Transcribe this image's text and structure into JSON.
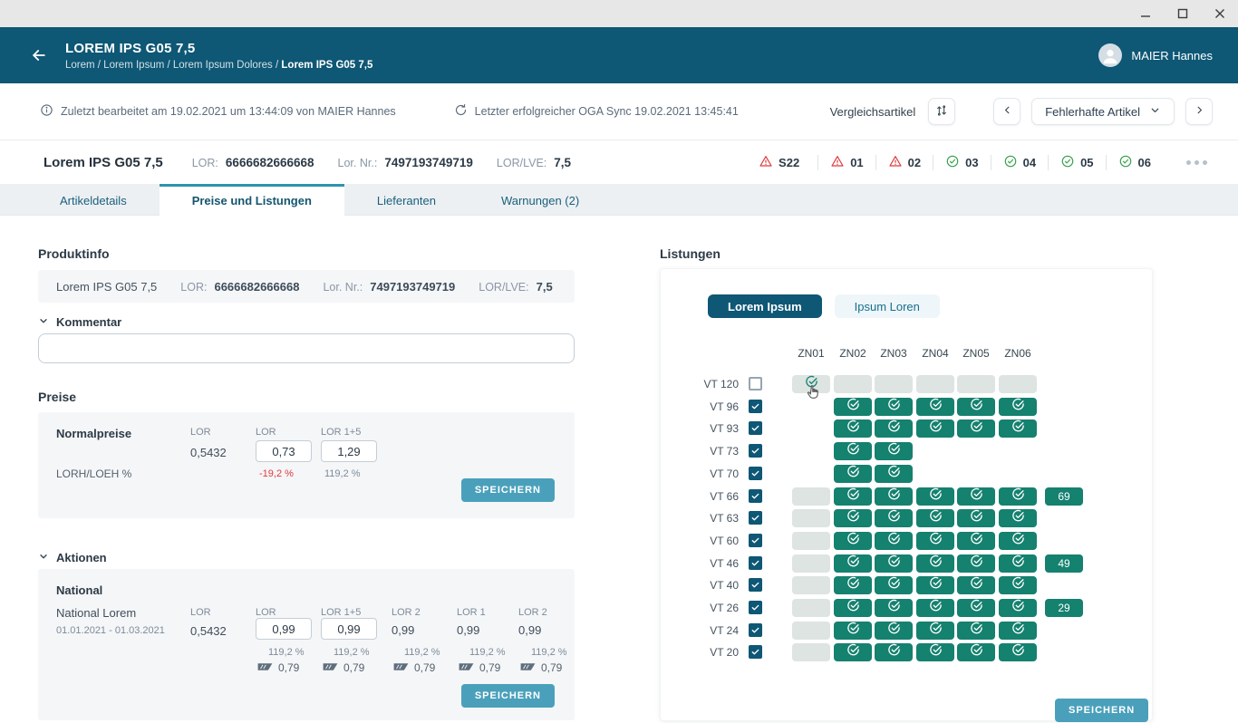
{
  "window": {
    "controls": [
      "minimize",
      "maximize",
      "close"
    ]
  },
  "header": {
    "title": "LOREM IPS G05 7,5",
    "breadcrumb_prefix": "Lorem / Lorem Ipsum / Lorem Ipsum Dolores / ",
    "breadcrumb_current": "Lorem IPS G05 7,5",
    "user": "MAIER Hannes"
  },
  "infobar": {
    "last_edited": "Zuletzt bearbeitet am 19.02.2021 um 13:44:09 von MAIER Hannes",
    "last_sync": "Letzter erfolgreicher OGA Sync 19.02.2021 13:45:41",
    "compare_label": "Vergleichsartikel",
    "dropdown_label": "Fehlerhafte Artikel"
  },
  "article": {
    "name": "Lorem IPS G05 7,5",
    "fields": [
      {
        "label": "LOR:",
        "value": "6666682666668"
      },
      {
        "label": "Lor. Nr.:",
        "value": "7497193749719"
      },
      {
        "label": "LOR/LVE:",
        "value": "7,5"
      }
    ],
    "badges": [
      {
        "label": "S22",
        "type": "warning"
      },
      {
        "label": "01",
        "type": "warning"
      },
      {
        "label": "02",
        "type": "warning"
      },
      {
        "label": "03",
        "type": "ok"
      },
      {
        "label": "04",
        "type": "ok"
      },
      {
        "label": "05",
        "type": "ok"
      },
      {
        "label": "06",
        "type": "ok"
      }
    ]
  },
  "tabs": [
    {
      "label": "Artikeldetails",
      "active": false
    },
    {
      "label": "Preise und Listungen",
      "active": true
    },
    {
      "label": "Lieferanten",
      "active": false
    },
    {
      "label": "Warnungen (2)",
      "active": false
    }
  ],
  "produktinfo": {
    "title": "Produktinfo",
    "name": "Lorem IPS G05 7,5",
    "fields": [
      {
        "label": "LOR:",
        "value": "6666682666668"
      },
      {
        "label": "Lor. Nr.:",
        "value": "7497193749719"
      },
      {
        "label": "LOR/LVE:",
        "value": "7,5"
      }
    ],
    "kommentar_label": "Kommentar",
    "kommentar_value": ""
  },
  "preise": {
    "title": "Preise",
    "row_label": "Normalpreise",
    "pct_row_label": "LORH/LOEH %",
    "columns": [
      {
        "header": "LOR",
        "value": "0,5432",
        "editable": false,
        "pct": ""
      },
      {
        "header": "LOR",
        "value": "0,73",
        "editable": true,
        "pct": "-19,2 %",
        "pct_negative": true
      },
      {
        "header": "LOR 1+5",
        "value": "1,29",
        "editable": true,
        "pct": "119,2 %",
        "pct_negative": false
      }
    ],
    "save_label": "SPEICHERN"
  },
  "aktionen": {
    "title": "Aktionen",
    "group": "National",
    "name": "National Lorem",
    "period": "01.01.2021 - 01.03.2021",
    "base": {
      "header": "LOR",
      "value": "0,5432"
    },
    "columns": [
      {
        "header": "LOR",
        "value": "0,99",
        "editable": true,
        "pct": "119,2 %",
        "alt": "0,79"
      },
      {
        "header": "LOR 1+5",
        "value": "0,99",
        "editable": true,
        "pct": "119,2 %",
        "alt": "0,79"
      },
      {
        "header": "LOR 2",
        "value": "0,99",
        "editable": false,
        "pct": "119,2 %",
        "alt": "0,79"
      },
      {
        "header": "LOR 1",
        "value": "0,99",
        "editable": false,
        "pct": "119,2 %",
        "alt": "0,79"
      },
      {
        "header": "LOR 2",
        "value": "0,99",
        "editable": false,
        "pct": "119,2 %",
        "alt": "0,79"
      }
    ],
    "save_label": "SPEICHERN"
  },
  "listungen": {
    "title": "Listungen",
    "toggles": [
      {
        "label": "Lorem Ipsum",
        "active": true
      },
      {
        "label": "Ipsum Loren",
        "active": false
      }
    ],
    "column_headers": [
      "ZN01",
      "ZN02",
      "ZN03",
      "ZN04",
      "ZN05",
      "ZN06"
    ],
    "rows": [
      {
        "label": "VT 120",
        "checked": false,
        "cells": [
          "gray-check",
          "gray",
          "gray",
          "gray",
          "gray",
          "gray"
        ],
        "badge": null,
        "cursor": true
      },
      {
        "label": "VT 96",
        "checked": true,
        "cells": [
          "none",
          "on",
          "on",
          "on",
          "on",
          "on"
        ],
        "badge": null
      },
      {
        "label": "VT 93",
        "checked": true,
        "cells": [
          "none",
          "on",
          "on",
          "on",
          "on",
          "on"
        ],
        "badge": null
      },
      {
        "label": "VT 73",
        "checked": true,
        "cells": [
          "none",
          "on",
          "on",
          "none",
          "none",
          "none"
        ],
        "badge": null
      },
      {
        "label": "VT 70",
        "checked": true,
        "cells": [
          "none",
          "on",
          "on",
          "none",
          "none",
          "none"
        ],
        "badge": null
      },
      {
        "label": "VT 66",
        "checked": true,
        "cells": [
          "gray",
          "on",
          "on",
          "on",
          "on",
          "on"
        ],
        "badge": "69"
      },
      {
        "label": "VT 63",
        "checked": true,
        "cells": [
          "gray",
          "on",
          "on",
          "on",
          "on",
          "on"
        ],
        "badge": null
      },
      {
        "label": "VT 60",
        "checked": true,
        "cells": [
          "gray",
          "on",
          "on",
          "on",
          "on",
          "on"
        ],
        "badge": null
      },
      {
        "label": "VT 46",
        "checked": true,
        "cells": [
          "gray",
          "on",
          "on",
          "on",
          "on",
          "on"
        ],
        "badge": "49"
      },
      {
        "label": "VT 40",
        "checked": true,
        "cells": [
          "gray",
          "on",
          "on",
          "on",
          "on",
          "on"
        ],
        "badge": null
      },
      {
        "label": "VT 26",
        "checked": true,
        "cells": [
          "gray",
          "on",
          "on",
          "on",
          "on",
          "on"
        ],
        "badge": "29"
      },
      {
        "label": "VT 24",
        "checked": true,
        "cells": [
          "gray",
          "on",
          "on",
          "on",
          "on",
          "on"
        ],
        "badge": null
      },
      {
        "label": "VT 20",
        "checked": true,
        "cells": [
          "gray",
          "on",
          "on",
          "on",
          "on",
          "on"
        ],
        "badge": null
      }
    ],
    "save_label": "SPEICHERN"
  },
  "colors": {
    "header_navy": "#0e5775",
    "cell_teal": "#15816f",
    "cell_gray": "#dde4e2",
    "save_blue": "#4aa0bb",
    "warning_red": "#e0393c",
    "ok_green": "#35a04a"
  }
}
